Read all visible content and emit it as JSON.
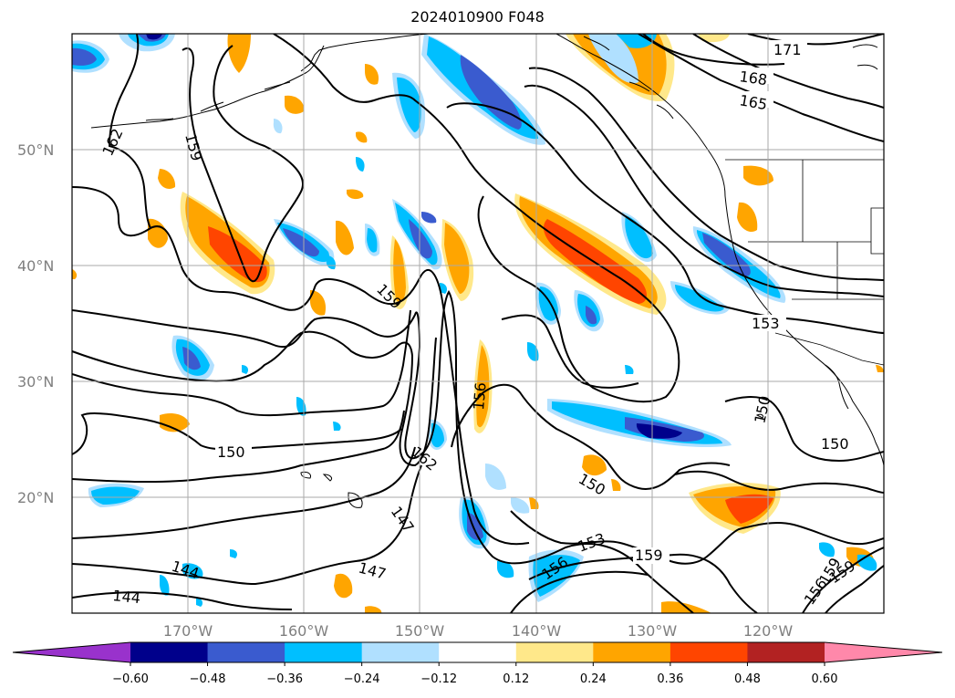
{
  "title": "2024010900 F048",
  "map": {
    "lon_range": [
      -180,
      -110
    ],
    "lat_range": [
      10,
      60
    ],
    "lat_ticks": [
      {
        "value": 20,
        "label": "20°N"
      },
      {
        "value": 30,
        "label": "30°N"
      },
      {
        "value": 40,
        "label": "40°N"
      },
      {
        "value": 50,
        "label": "50°N"
      }
    ],
    "lon_ticks": [
      {
        "value": -170,
        "label": "170°W"
      },
      {
        "value": -160,
        "label": "160°W"
      },
      {
        "value": -150,
        "label": "150°W"
      },
      {
        "value": -140,
        "label": "140°W"
      },
      {
        "value": -130,
        "label": "130°W"
      },
      {
        "value": -120,
        "label": "120°W"
      }
    ],
    "contour_labels": [
      "171",
      "168",
      "165",
      "162",
      "159",
      "159",
      "159",
      "156",
      "153",
      "150",
      "150",
      "150",
      "150",
      "162",
      "147",
      "147",
      "153",
      "156",
      "159",
      "156",
      "159",
      "144",
      "144"
    ]
  },
  "colorbar": {
    "ticks": [
      "−0.60",
      "−0.48",
      "−0.36",
      "−0.24",
      "−0.12",
      "0.12",
      "0.24",
      "0.36",
      "0.48",
      "0.60"
    ],
    "colors": [
      "#9932cc",
      "#00008b",
      "#3a5bcf",
      "#00bfff",
      "#b0e0ff",
      "#ffffff",
      "#ffe88a",
      "#ffa500",
      "#ff4500",
      "#b22222",
      "#ff88aa"
    ]
  }
}
